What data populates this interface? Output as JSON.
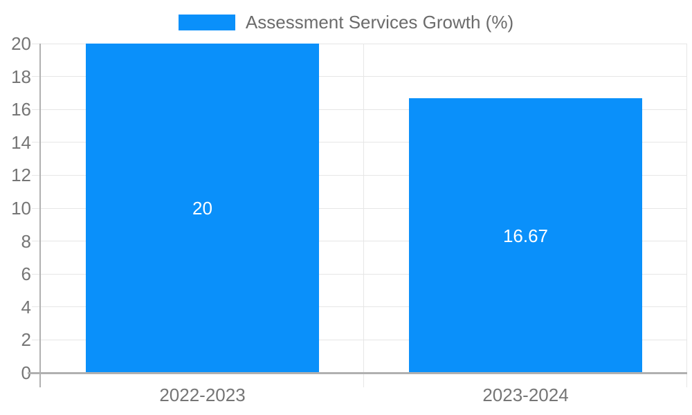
{
  "legend": {
    "label": "Assessment Services Growth (%)"
  },
  "chart_data": {
    "type": "bar",
    "title": "",
    "xlabel": "",
    "ylabel": "",
    "categories": [
      "2022-2023",
      "2023-2024"
    ],
    "series": [
      {
        "name": "Assessment Services Growth (%)",
        "values": [
          20,
          16.67
        ],
        "value_labels": [
          "20",
          "16.67"
        ],
        "color": "#0a90fa"
      }
    ],
    "ylim": [
      0,
      20
    ],
    "yticks": [
      0,
      2,
      4,
      6,
      8,
      10,
      12,
      14,
      16,
      18,
      20
    ],
    "grid": true,
    "legend_position": "top-center",
    "bar_width_fraction": 0.72,
    "colors": {
      "bar": "#0a90fa",
      "grid": "#e6e6e6",
      "axis": "#b0b0b0",
      "tick_text": "#757575",
      "legend_text": "#6b6b6b",
      "data_label": "#ffffff",
      "background": "#ffffff"
    }
  }
}
